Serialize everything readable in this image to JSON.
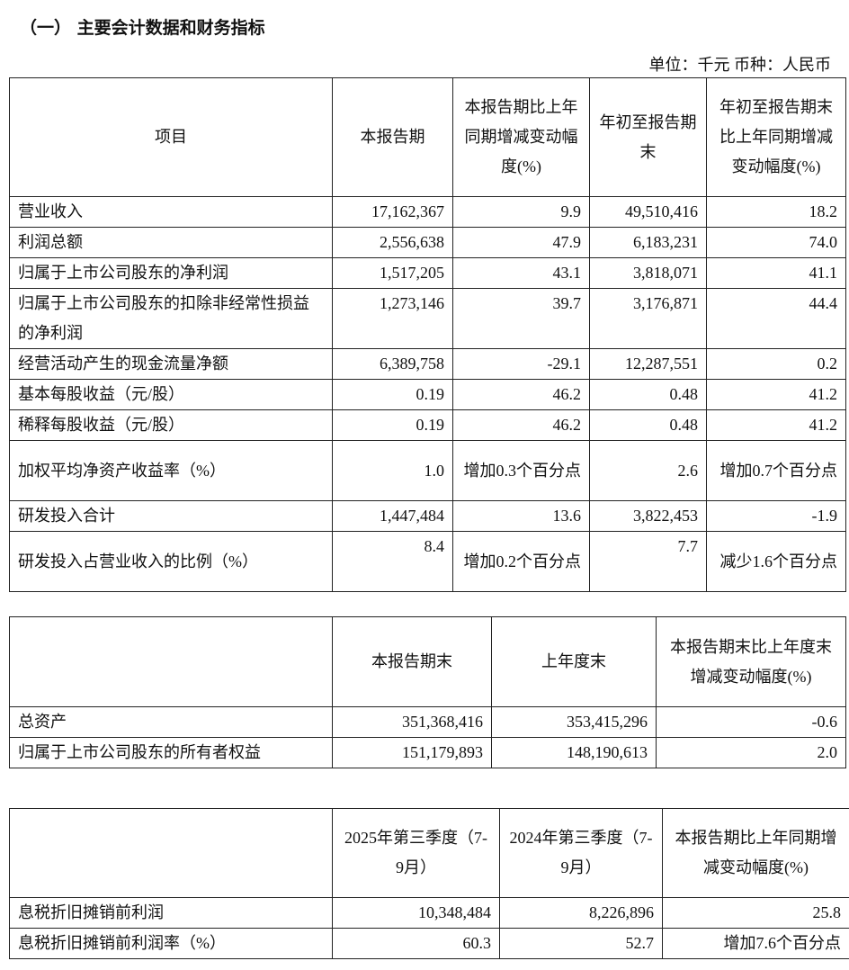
{
  "title": "（一） 主要会计数据和财务指标",
  "unit": "单位：千元   币种：人民币",
  "table1": {
    "headers": [
      "项目",
      "本报告期",
      "本报告期比上年同期增减变动幅度(%)",
      "年初至报告期末",
      "年初至报告期末比上年同期增减变动幅度(%)"
    ],
    "rows": [
      [
        "营业收入",
        "17,162,367",
        "9.9",
        "49,510,416",
        "18.2"
      ],
      [
        "利润总额",
        "2,556,638",
        "47.9",
        "6,183,231",
        "74.0"
      ],
      [
        "归属于上市公司股东的净利润",
        "1,517,205",
        "43.1",
        "3,818,071",
        "41.1"
      ],
      [
        "归属于上市公司股东的扣除非经常性损益的净利润",
        "1,273,146",
        "39.7",
        "3,176,871",
        "44.4"
      ],
      [
        "经营活动产生的现金流量净额",
        "6,389,758",
        "-29.1",
        "12,287,551",
        "0.2"
      ],
      [
        "基本每股收益（元/股）",
        "0.19",
        "46.2",
        "0.48",
        "41.2"
      ],
      [
        "稀释每股收益（元/股）",
        "0.19",
        "46.2",
        "0.48",
        "41.2"
      ],
      [
        "加权平均净资产收益率（%）",
        "1.0",
        "增加0.3个百分点",
        "2.6",
        "增加0.7个百分点"
      ],
      [
        "研发投入合计",
        "1,447,484",
        "13.6",
        "3,822,453",
        "-1.9"
      ],
      [
        "研发投入占营业收入的比例（%）",
        "8.4",
        "增加0.2个百分点",
        "7.7",
        "减少1.6个百分点"
      ]
    ]
  },
  "table2": {
    "headers": [
      "",
      "本报告期末",
      "上年度末",
      "本报告期末比上年度末增减变动幅度(%)"
    ],
    "rows": [
      [
        "总资产",
        "351,368,416",
        "353,415,296",
        "-0.6"
      ],
      [
        "归属于上市公司股东的所有者权益",
        "151,179,893",
        "148,190,613",
        "2.0"
      ]
    ]
  },
  "table3": {
    "headers": [
      "",
      "2025年第三季度（7-9月）",
      "2024年第三季度（7-9月）",
      "本报告期比上年同期增减变动幅度(%)"
    ],
    "rows": [
      [
        "息税折旧摊销前利润",
        "10,348,484",
        "8,226,896",
        "25.8"
      ],
      [
        "息税折旧摊销前利润率（%）",
        "60.3",
        "52.7",
        "增加7.6个百分点"
      ]
    ]
  }
}
